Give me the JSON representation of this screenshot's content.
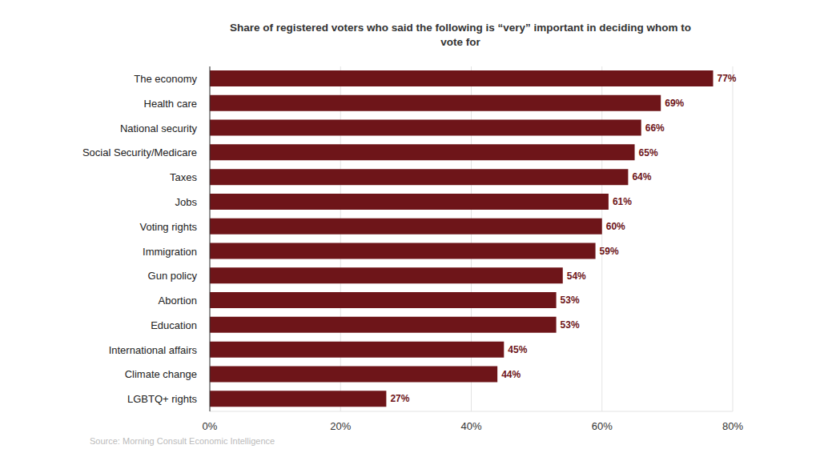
{
  "chart_data": {
    "type": "bar",
    "orientation": "horizontal",
    "title": "Share of registered voters who said the following is “very” important in deciding whom to vote for",
    "source": "Source: Morning Consult Economic Intelligence",
    "categories": [
      "The economy",
      "Health care",
      "National security",
      "Social Security/Medicare",
      "Taxes",
      "Jobs",
      "Voting rights",
      "Immigration",
      "Gun policy",
      "Abortion",
      "Education",
      "International affairs",
      "Climate change",
      "LGBTQ+ rights"
    ],
    "values": [
      77,
      69,
      66,
      65,
      64,
      61,
      60,
      59,
      54,
      53,
      53,
      45,
      44,
      27
    ],
    "value_labels": [
      "77%",
      "69%",
      "66%",
      "65%",
      "64%",
      "61%",
      "60%",
      "59%",
      "54%",
      "53%",
      "53%",
      "45%",
      "44%",
      "27%"
    ],
    "color": "#6e1519",
    "data_labels": true,
    "grid": true,
    "xlim": [
      0,
      80
    ],
    "xticks": [
      {
        "value": 0,
        "label": "0%"
      },
      {
        "value": 20,
        "label": "20%"
      },
      {
        "value": 40,
        "label": "40%"
      },
      {
        "value": 60,
        "label": "60%"
      },
      {
        "value": 80,
        "label": "80%"
      }
    ]
  }
}
